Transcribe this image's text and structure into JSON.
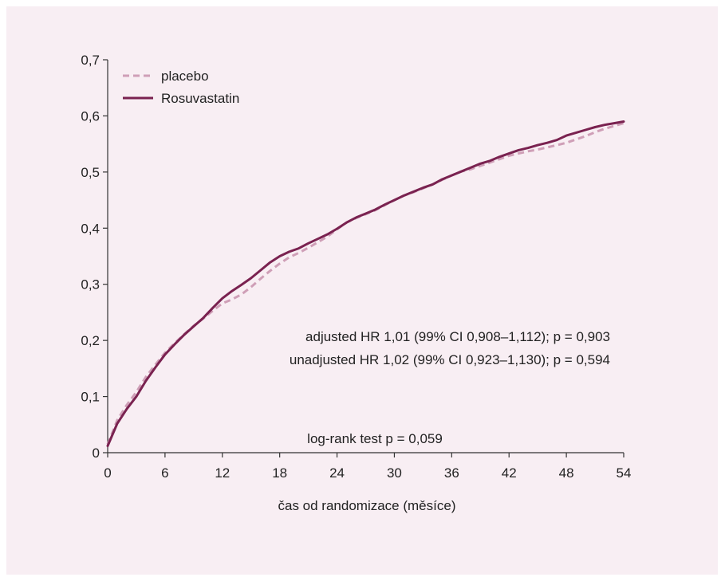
{
  "chart_data": {
    "type": "line",
    "title": "",
    "xlabel": "čas od randomizace (měsíce)",
    "ylabel": "",
    "xlim": [
      0,
      54
    ],
    "ylim": [
      0,
      0.7
    ],
    "x_ticks": [
      0,
      6,
      12,
      18,
      24,
      30,
      36,
      42,
      48,
      54
    ],
    "x_tick_labels": [
      "0",
      "6",
      "12",
      "18",
      "24",
      "30",
      "36",
      "42",
      "48",
      "54"
    ],
    "y_ticks": [
      0,
      0.1,
      0.2,
      0.3,
      0.4,
      0.5,
      0.6,
      0.7
    ],
    "y_tick_labels": [
      "0",
      "0,1",
      "0,2",
      "0,3",
      "0,4",
      "0,5",
      "0,6",
      "0,7"
    ],
    "grid": false,
    "legend_position": "top-left",
    "series": [
      {
        "name": "placebo",
        "style": "dashed",
        "color": "#cf9fb7",
        "x": [
          0,
          1,
          2,
          3,
          4,
          5,
          6,
          7,
          8,
          9,
          10,
          11,
          12,
          13,
          14,
          15,
          16,
          17,
          18,
          19,
          20,
          21,
          22,
          23,
          24,
          25,
          26,
          27,
          28,
          29,
          30,
          31,
          32,
          33,
          34,
          35,
          36,
          37,
          38,
          39,
          40,
          41,
          42,
          43,
          44,
          45,
          46,
          47,
          48,
          49,
          50,
          51,
          52,
          53,
          54
        ],
        "y": [
          0.015,
          0.058,
          0.085,
          0.108,
          0.135,
          0.157,
          0.178,
          0.195,
          0.211,
          0.226,
          0.239,
          0.253,
          0.266,
          0.273,
          0.282,
          0.295,
          0.31,
          0.324,
          0.337,
          0.348,
          0.356,
          0.365,
          0.375,
          0.385,
          0.398,
          0.41,
          0.418,
          0.425,
          0.432,
          0.441,
          0.45,
          0.458,
          0.464,
          0.471,
          0.478,
          0.486,
          0.494,
          0.501,
          0.505,
          0.511,
          0.517,
          0.523,
          0.529,
          0.533,
          0.537,
          0.54,
          0.544,
          0.548,
          0.552,
          0.558,
          0.564,
          0.571,
          0.577,
          0.582,
          0.587
        ]
      },
      {
        "name": "Rosuvastatin",
        "style": "solid",
        "color": "#7a2250",
        "x": [
          0,
          1,
          2,
          3,
          4,
          5,
          6,
          7,
          8,
          9,
          10,
          11,
          12,
          13,
          14,
          15,
          16,
          17,
          18,
          19,
          20,
          21,
          22,
          23,
          24,
          25,
          26,
          27,
          28,
          29,
          30,
          31,
          32,
          33,
          34,
          35,
          36,
          37,
          38,
          39,
          40,
          41,
          42,
          43,
          44,
          45,
          46,
          47,
          48,
          49,
          50,
          51,
          52,
          53,
          54
        ],
        "y": [
          0.012,
          0.052,
          0.078,
          0.1,
          0.128,
          0.152,
          0.175,
          0.193,
          0.21,
          0.225,
          0.24,
          0.258,
          0.275,
          0.288,
          0.299,
          0.311,
          0.325,
          0.339,
          0.35,
          0.358,
          0.364,
          0.373,
          0.381,
          0.389,
          0.399,
          0.41,
          0.419,
          0.426,
          0.433,
          0.442,
          0.45,
          0.458,
          0.465,
          0.472,
          0.478,
          0.487,
          0.494,
          0.501,
          0.508,
          0.515,
          0.52,
          0.527,
          0.533,
          0.539,
          0.543,
          0.548,
          0.552,
          0.557,
          0.565,
          0.57,
          0.575,
          0.58,
          0.584,
          0.587,
          0.59
        ]
      }
    ],
    "annotations": [
      "adjusted HR 1,01 (99% CI 0,908–1,112); p = 0,903",
      "unadjusted HR 1,02 (99% CI 0,923–1,130); p = 0,594",
      "log-rank test p = 0,059"
    ]
  }
}
